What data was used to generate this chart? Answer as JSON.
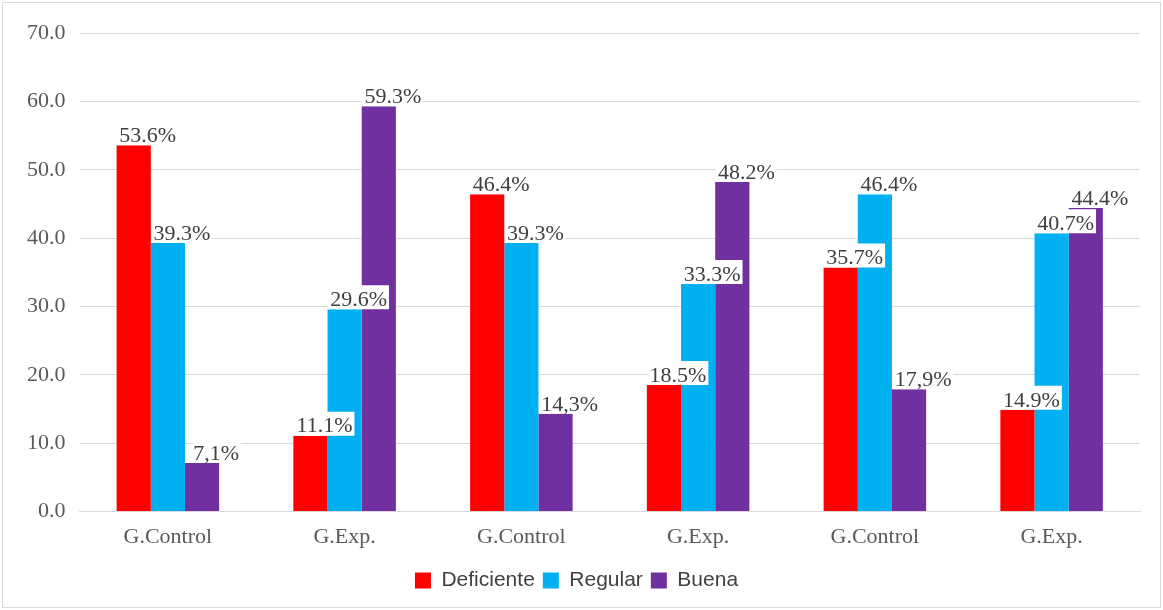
{
  "chart_data": {
    "type": "bar",
    "categories": [
      "G.Control",
      "G.Exp.",
      "G.Control",
      "G.Exp.",
      "G.Control",
      "G.Exp."
    ],
    "series": [
      {
        "name": "Deficiente",
        "color": "#ff0000",
        "values": [
          53.6,
          11.1,
          46.4,
          18.5,
          35.7,
          14.9
        ],
        "value_labels": [
          "53.6%",
          "11.1%",
          "46.4%",
          "18.5%",
          "35.7%",
          "14.9%"
        ]
      },
      {
        "name": "Regular",
        "color": "#00b0f0",
        "values": [
          39.3,
          29.6,
          39.3,
          33.3,
          46.4,
          40.7
        ],
        "value_labels": [
          "39.3%",
          "29.6%",
          "39.3%",
          "33.3%",
          "46.4%",
          "40.7%"
        ]
      },
      {
        "name": "Buena",
        "color": "#7030a0",
        "values": [
          7.1,
          59.3,
          14.3,
          48.2,
          17.9,
          44.4
        ],
        "value_labels": [
          "7,1%",
          "59.3%",
          "14,3%",
          "48.2%",
          "17,9%",
          "44.4%"
        ]
      }
    ],
    "ylim": [
      0,
      70
    ],
    "yticks": [
      {
        "value": 0,
        "label": "0.0"
      },
      {
        "value": 10,
        "label": "10.0"
      },
      {
        "value": 20,
        "label": "20.0"
      },
      {
        "value": 30,
        "label": "30.0"
      },
      {
        "value": 40,
        "label": "40.0"
      },
      {
        "value": 50,
        "label": "50.0"
      },
      {
        "value": 60,
        "label": "60.0"
      },
      {
        "value": 70,
        "label": "70.0"
      }
    ],
    "grid": "y",
    "legend": "bottom"
  }
}
